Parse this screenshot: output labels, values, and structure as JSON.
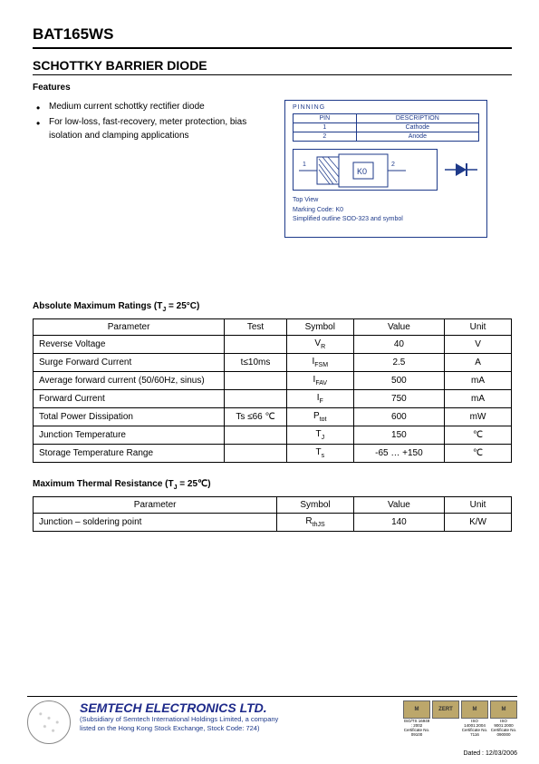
{
  "part_number": "BAT165WS",
  "title": "SCHOTTKY BARRIER DIODE",
  "features_heading": "Features",
  "features": [
    "Medium current schottky rectifier diode",
    "For low-loss, fast-recovery, meter protection, bias isolation and clamping applications"
  ],
  "pinning": {
    "label": "PINNING",
    "columns": [
      "PIN",
      "DESCRIPTION"
    ],
    "rows": [
      [
        "1",
        "Cathode"
      ],
      [
        "2",
        "Anode"
      ]
    ],
    "marking_code": "K0",
    "top_view": "Top View",
    "marking_line": "Marking Code:  K0",
    "outline": "Simplified outline SOD-323 and symbol",
    "box_color": "#1e3a8a"
  },
  "abs_max": {
    "heading_prefix": "Absolute Maximum Ratings (T",
    "heading_sub": "J",
    "heading_suffix": " = 25°C)",
    "columns": [
      "Parameter",
      "Test",
      "Symbol",
      "Value",
      "Unit"
    ],
    "rows": [
      {
        "param": "Reverse Voltage",
        "test": "",
        "symbol": "V",
        "symbol_sub": "R",
        "value": "40",
        "unit": "V"
      },
      {
        "param": "Surge Forward Current",
        "test": "t≤10ms",
        "symbol": "I",
        "symbol_sub": "FSM",
        "value": "2.5",
        "unit": "A"
      },
      {
        "param": "Average forward current (50/60Hz, sinus)",
        "test": "",
        "symbol": "I",
        "symbol_sub": "FAV",
        "value": "500",
        "unit": "mA"
      },
      {
        "param": "Forward Current",
        "test": "",
        "symbol": "I",
        "symbol_sub": "F",
        "value": "750",
        "unit": "mA"
      },
      {
        "param": "Total Power Dissipation",
        "test": "Ts ≤66 ℃",
        "symbol": "P",
        "symbol_sub": "tot",
        "value": "600",
        "unit": "mW"
      },
      {
        "param": "Junction Temperature",
        "test": "",
        "symbol": "T",
        "symbol_sub": "J",
        "value": "150",
        "unit": "℃"
      },
      {
        "param": "Storage Temperature Range",
        "test": "",
        "symbol": "T",
        "symbol_sub": "s",
        "value": "-65 … +150",
        "unit": "℃"
      }
    ],
    "col_widths": [
      "40%",
      "13%",
      "14%",
      "19%",
      "14%"
    ]
  },
  "thermal": {
    "heading_prefix": "Maximum Thermal Resistance (T",
    "heading_sub": "J",
    "heading_suffix": " = 25℃)",
    "columns": [
      "Parameter",
      "Symbol",
      "Value",
      "Unit"
    ],
    "rows": [
      {
        "param": "Junction – soldering point",
        "symbol": "R",
        "symbol_sub": "thJS",
        "value": "140",
        "unit": "K/W"
      }
    ],
    "col_widths": [
      "51%",
      "16%",
      "19%",
      "14%"
    ]
  },
  "footer": {
    "company": "SEMTECH ELECTRONICS LTD.",
    "sub1": "(Subsidiary of Semtech International Holdings Limited, a company",
    "sub2": "listed on the Hong Kong Stock Exchange, Stock Code: 724)",
    "certs": [
      {
        "badge": "M",
        "line1": "ISO/TS 16949 : 2002",
        "line2": "Certificate No. 09100"
      },
      {
        "badge": "ZERT",
        "line1": "",
        "line2": ""
      },
      {
        "badge": "M",
        "line1": "ISO 14001:2004",
        "line2": "Certificate No. 7116"
      },
      {
        "badge": "M",
        "line1": "ISO 9001:2000",
        "line2": "Certificate No. 090000"
      }
    ],
    "dated": "Dated : 12/03/2006"
  }
}
